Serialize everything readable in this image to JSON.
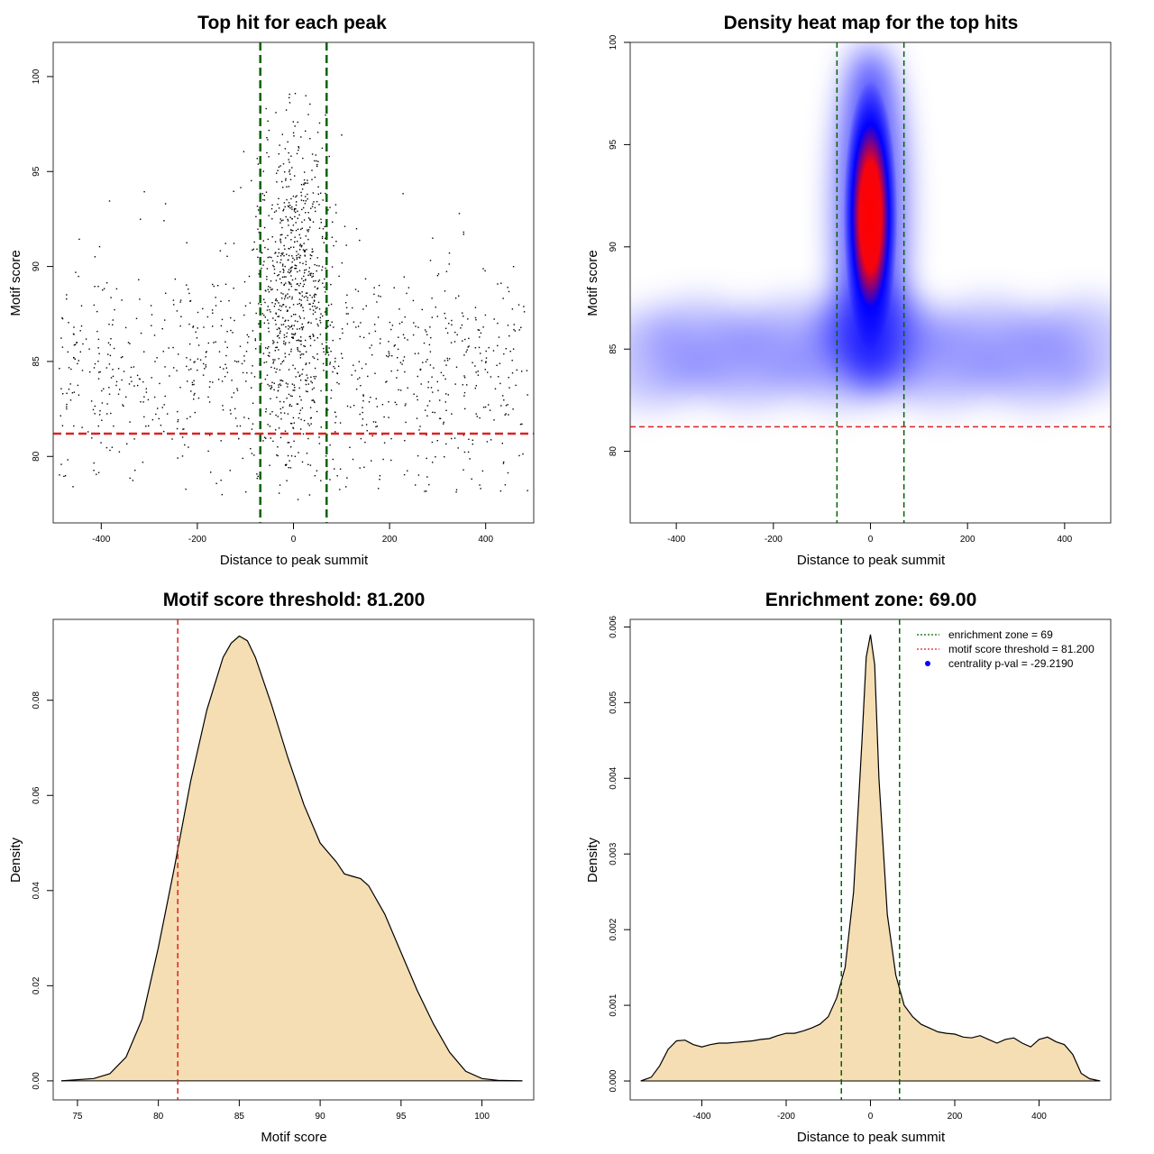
{
  "colors": {
    "threshold_line": "#dd2222",
    "zone_line": "#006400",
    "density_fill": "#f5deb3",
    "points": "#000000",
    "heat_low": "#ffffff",
    "heat_mid": "#0000ff",
    "heat_high": "#ff0000"
  },
  "chart_data": [
    {
      "type": "scatter",
      "title": "Top hit for each peak",
      "xlabel": "Distance to peak summit",
      "ylabel": "Motif score",
      "xlim": [
        -500,
        500
      ],
      "ylim": [
        76.5,
        101.8
      ],
      "xticks": [
        -400,
        -200,
        0,
        200,
        400
      ],
      "yticks": [
        80,
        85,
        90,
        95,
        100
      ],
      "vlines": [
        -69,
        69
      ],
      "hline": 81.2,
      "n_points": 1650,
      "background_band": {
        "x": [
          -500,
          500
        ],
        "y": [
          78,
          94
        ]
      },
      "central_cluster": {
        "x_center": 0,
        "x_spread": 40,
        "y": [
          78,
          100
        ]
      }
    },
    {
      "type": "heatmap",
      "title": "Density heat map for the top hits",
      "xlabel": "Distance to peak summit",
      "ylabel": "Motif score",
      "xlim": [
        -495,
        495
      ],
      "ylim": [
        76.5,
        100
      ],
      "xticks": [
        -400,
        -200,
        0,
        200,
        400
      ],
      "yticks": [
        80,
        85,
        90,
        95,
        100
      ],
      "vlines": [
        -69,
        69
      ],
      "hline": 81.2,
      "peak": {
        "x": 0,
        "y": 91.5
      },
      "background_band_y": 84.5
    },
    {
      "type": "area",
      "title": "Motif score threshold: 81.200",
      "xlabel": "Motif score",
      "ylabel": "Density",
      "xlim": [
        73.5,
        103.2
      ],
      "ylim": [
        -0.004,
        0.097
      ],
      "xticks": [
        75,
        80,
        85,
        90,
        95,
        100
      ],
      "yticks": [
        0.0,
        0.02,
        0.04,
        0.06,
        0.08
      ],
      "ytick_labels": [
        "0.00",
        "0.02",
        "0.04",
        "0.06",
        "0.08"
      ],
      "vline": 81.2,
      "x": [
        74,
        76,
        77,
        78,
        79,
        80,
        81,
        82,
        83,
        84,
        84.5,
        85,
        85.5,
        86,
        87,
        88,
        89,
        90,
        91,
        91.5,
        92,
        92.5,
        93,
        94,
        95,
        96,
        97,
        98,
        99,
        100,
        101,
        102.5
      ],
      "y": [
        0.0,
        0.0005,
        0.0015,
        0.005,
        0.013,
        0.028,
        0.045,
        0.063,
        0.078,
        0.089,
        0.092,
        0.0935,
        0.0925,
        0.089,
        0.079,
        0.068,
        0.058,
        0.05,
        0.046,
        0.0435,
        0.043,
        0.0425,
        0.041,
        0.035,
        0.027,
        0.019,
        0.012,
        0.006,
        0.002,
        0.0005,
        0.0001,
        0.0
      ]
    },
    {
      "type": "area",
      "title": "Enrichment zone: 69.00",
      "xlabel": "Distance to peak summit",
      "ylabel": "Density",
      "xlim": [
        -570,
        570
      ],
      "ylim": [
        -0.00025,
        0.0061
      ],
      "xticks": [
        -400,
        -200,
        0,
        200,
        400
      ],
      "yticks": [
        0.0,
        0.001,
        0.002,
        0.003,
        0.004,
        0.005,
        0.006
      ],
      "ytick_labels": [
        "0.000",
        "0.001",
        "0.002",
        "0.003",
        "0.004",
        "0.005",
        "0.006"
      ],
      "vlines": [
        -69,
        69
      ],
      "x": [
        -545,
        -520,
        -500,
        -480,
        -460,
        -440,
        -420,
        -400,
        -380,
        -360,
        -340,
        -320,
        -300,
        -280,
        -260,
        -240,
        -220,
        -200,
        -180,
        -160,
        -140,
        -120,
        -100,
        -80,
        -60,
        -40,
        -20,
        -10,
        0,
        10,
        20,
        40,
        60,
        80,
        100,
        120,
        140,
        160,
        180,
        200,
        220,
        240,
        260,
        280,
        300,
        320,
        340,
        360,
        380,
        400,
        420,
        440,
        460,
        480,
        500,
        520,
        545
      ],
      "y": [
        0.0,
        5e-05,
        0.0002,
        0.00042,
        0.00053,
        0.00054,
        0.00048,
        0.00045,
        0.00048,
        0.0005,
        0.0005,
        0.00051,
        0.00052,
        0.00053,
        0.00055,
        0.00056,
        0.0006,
        0.00063,
        0.00063,
        0.00066,
        0.0007,
        0.00075,
        0.00085,
        0.0011,
        0.0015,
        0.0025,
        0.0045,
        0.0056,
        0.0059,
        0.0055,
        0.004,
        0.0022,
        0.0014,
        0.001,
        0.00085,
        0.00075,
        0.0007,
        0.00065,
        0.00063,
        0.00062,
        0.00058,
        0.00057,
        0.0006,
        0.00055,
        0.0005,
        0.00055,
        0.00057,
        0.0005,
        0.00045,
        0.00055,
        0.00058,
        0.00052,
        0.00048,
        0.00035,
        0.0001,
        3e-05,
        0.0
      ],
      "legend": {
        "position": "top-right",
        "entries": [
          {
            "label": "enrichment zone = 69",
            "style": "dotted",
            "color": "#006400"
          },
          {
            "label": "motif score threshold = 81.200",
            "style": "dotted",
            "color": "#dd2222"
          },
          {
            "label": "centrality p-val = -29.2190",
            "style": "point",
            "color": "#0000ff"
          }
        ]
      }
    }
  ]
}
